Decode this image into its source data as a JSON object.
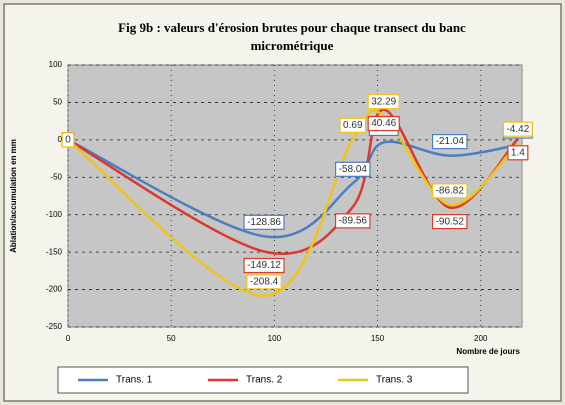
{
  "chart_data": {
    "type": "line",
    "title": "Fig 9b : valeurs d'érosion brutes pour chaque transect du banc",
    "subtitle": "micrométrique",
    "y_label": "Ablation/accumulation en mm",
    "x_label": "Nombre de jours",
    "x": [
      0,
      95,
      138,
      153,
      185,
      218
    ],
    "series": [
      {
        "name": "Trans. 1",
        "color": "#4a7fc1",
        "values": [
          0,
          -128.86,
          -58.04,
          -3.42,
          -21.04,
          -6.88
        ]
      },
      {
        "name": "Trans. 2",
        "color": "#d93a2b",
        "values": [
          0,
          -149.12,
          -89.56,
          40.46,
          -90.52,
          1.4
        ]
      },
      {
        "name": "Trans. 3",
        "color": "#f0c419",
        "values": [
          0,
          -208.4,
          0.69,
          32.29,
          -86.82,
          -4.42
        ]
      }
    ],
    "xlim": [
      0,
      220
    ],
    "xticks": [
      0,
      50,
      100,
      150,
      200
    ],
    "ylim": [
      -250,
      100
    ],
    "yticks": [
      -250,
      -200,
      -150,
      -100,
      -50,
      0,
      50,
      100
    ],
    "grid": true,
    "legend": "bottom"
  }
}
